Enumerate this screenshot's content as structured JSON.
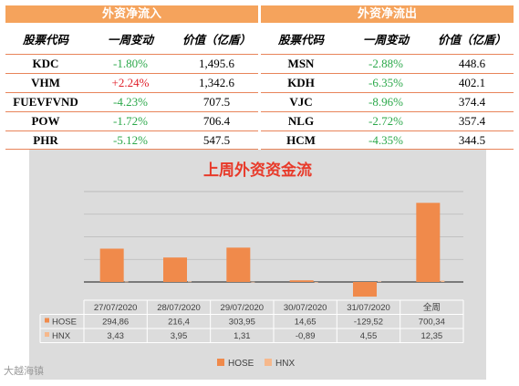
{
  "inflow": {
    "title": "外资净流入",
    "headers": [
      "股票代码",
      "一周变动",
      "价值（亿盾）"
    ],
    "rows": [
      {
        "code": "KDC",
        "change": "-1.80%",
        "value": "1,495.6"
      },
      {
        "code": "VHM",
        "change": "+2.24%",
        "value": "1,342.6"
      },
      {
        "code": "FUEVFVND",
        "change": "-4.23%",
        "value": "707.5"
      },
      {
        "code": "POW",
        "change": "-1.72%",
        "value": "706.4"
      },
      {
        "code": "PHR",
        "change": "-5.12%",
        "value": "547.5"
      }
    ]
  },
  "outflow": {
    "title": "外资净流出",
    "headers": [
      "股票代码",
      "一周变动",
      "价值（亿盾）"
    ],
    "rows": [
      {
        "code": "MSN",
        "change": "-2.88%",
        "value": "448.6"
      },
      {
        "code": "KDH",
        "change": "-6.35%",
        "value": "402.1"
      },
      {
        "code": "VJC",
        "change": "-8.96%",
        "value": "374.4"
      },
      {
        "code": "NLG",
        "change": "-2.72%",
        "value": "357.4"
      },
      {
        "code": "HCM",
        "change": "-4.35%",
        "value": "344.5"
      }
    ]
  },
  "colors": {
    "up": "#E0202A",
    "down": "#2BA84A",
    "hose": "#F08A4B",
    "hnx": "#F6B88C"
  },
  "watermark": "大越海镇",
  "chart_data": {
    "type": "bar",
    "title": "上周外资资金流",
    "categories": [
      "27/07/2020",
      "28/07/2020",
      "29/07/2020",
      "30/07/2020",
      "31/07/2020",
      "全周"
    ],
    "series": [
      {
        "name": "HOSE",
        "values": [
          294.86,
          216.4,
          303.95,
          14.65,
          -129.52,
          700.34
        ],
        "labels": [
          "294,86",
          "216,4",
          "303,95",
          "14,65",
          "-129,52",
          "700,34"
        ]
      },
      {
        "name": "HNX",
        "values": [
          3.43,
          3.95,
          1.31,
          -0.89,
          4.55,
          12.35
        ],
        "labels": [
          "3,43",
          "3,95",
          "1,31",
          "-0,89",
          "4,55",
          "12,35"
        ]
      }
    ],
    "ylim": [
      -150,
      900
    ],
    "grid": true,
    "legend": "bottom",
    "data_table": true
  }
}
